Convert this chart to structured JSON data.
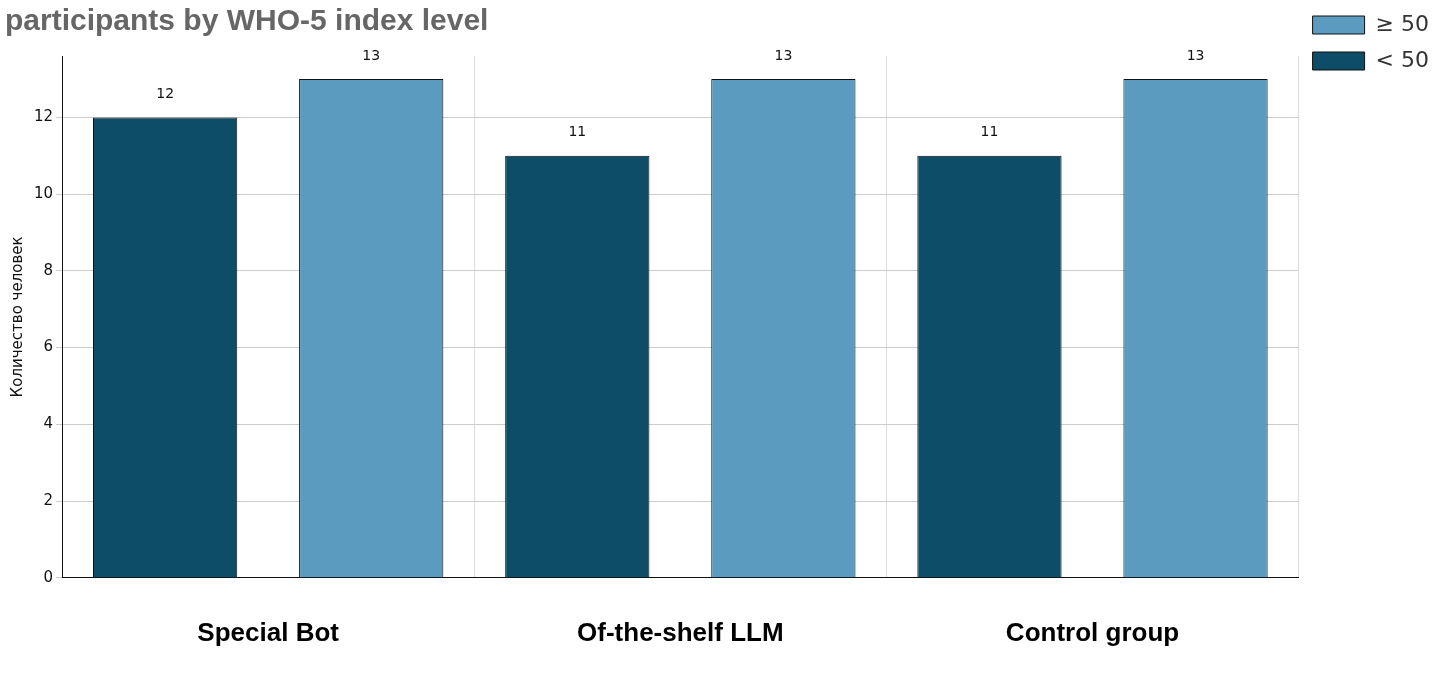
{
  "chart_data": {
    "type": "bar",
    "title": "participants by WHO-5 index level",
    "ylabel": "Количество человек",
    "categories": [
      "Special Bot",
      "Of-the-shelf LLM",
      "Control group"
    ],
    "series": [
      {
        "name": "< 50",
        "color": "#0d4d68",
        "values": [
          12,
          11,
          11
        ]
      },
      {
        "name": "≥ 50",
        "color": "#5b9bc0",
        "values": [
          13,
          13,
          13
        ]
      }
    ],
    "ylim": [
      0,
      13.6
    ],
    "yticks": [
      0,
      2,
      4,
      6,
      8,
      10,
      12
    ],
    "grid": true,
    "legend": "top right",
    "data_labels": true
  }
}
